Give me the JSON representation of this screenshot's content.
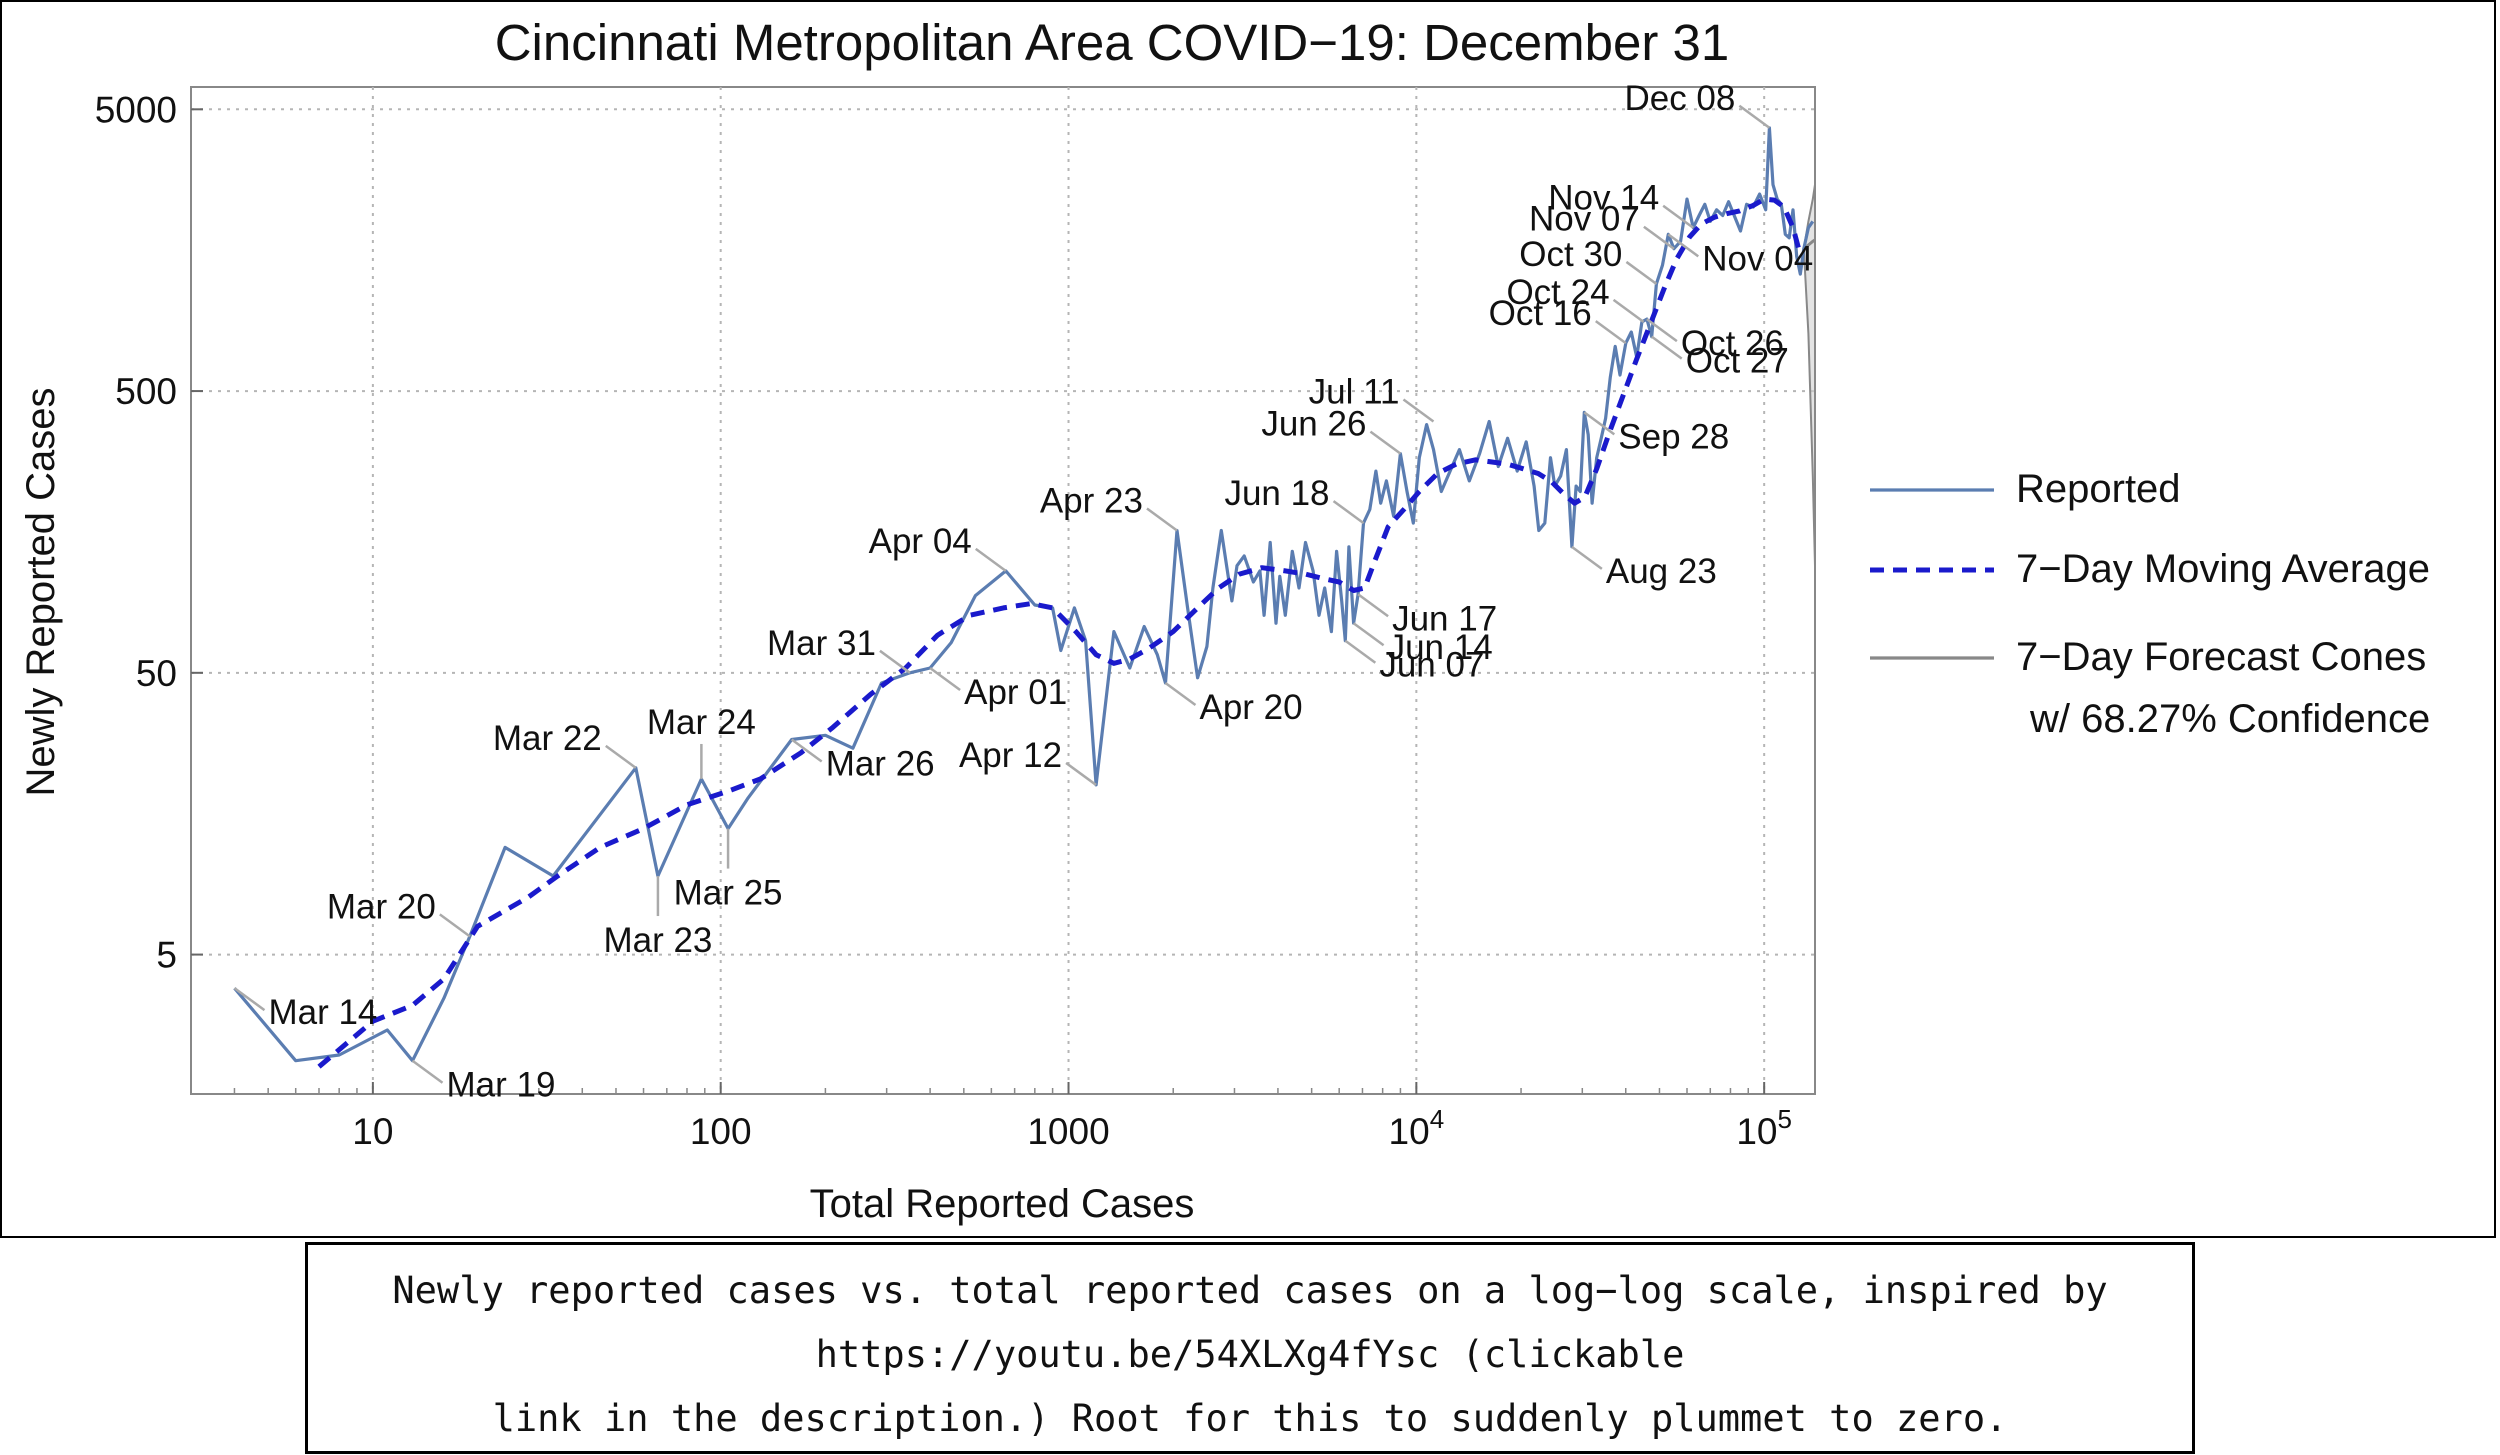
{
  "chart_data": {
    "type": "line",
    "title": "Cincinnati Metropolitan Area COVID−19: December 31",
    "xlabel": "Total Reported Cases",
    "ylabel": "Newly Reported Cases",
    "x_scale": "log",
    "y_scale": "log",
    "xlim": [
      3,
      140000
    ],
    "ylim": [
      1.6,
      6000
    ],
    "grid": true,
    "x_ticks": [
      {
        "value": 10,
        "label": "10"
      },
      {
        "value": 100,
        "label": "100"
      },
      {
        "value": 1000,
        "label": "1000"
      },
      {
        "value": 10000,
        "label": "10",
        "sup": "4"
      },
      {
        "value": 100000,
        "label": "10",
        "sup": "5"
      }
    ],
    "y_ticks": [
      {
        "value": 5,
        "label": "5"
      },
      {
        "value": 50,
        "label": "50"
      },
      {
        "value": 500,
        "label": "500"
      },
      {
        "value": 5000,
        "label": "5000"
      }
    ],
    "legend": {
      "placement": "right",
      "entries": [
        {
          "label": "Reported",
          "color": "#5b7db1",
          "style": "solid"
        },
        {
          "label": "7−Day Moving Average",
          "color": "#1a1acc",
          "style": "dashed"
        },
        {
          "label": "7−Day Forecast Cones",
          "label2": "w/ 68.27% Confidence",
          "color": "#888888",
          "style": "solid"
        }
      ]
    },
    "series": [
      {
        "name": "Reported",
        "color": "#5b7db1",
        "points": [
          [
            4,
            3.8
          ],
          [
            6,
            2.1
          ],
          [
            8,
            2.2
          ],
          [
            11,
            2.7
          ],
          [
            13,
            2.1
          ],
          [
            16,
            3.5
          ],
          [
            19,
            5.8
          ],
          [
            24,
            12
          ],
          [
            33,
            9.5
          ],
          [
            57,
            23
          ],
          [
            66,
            9.5
          ],
          [
            88,
            21
          ],
          [
            105,
            14
          ],
          [
            120,
            18
          ],
          [
            160,
            29
          ],
          [
            200,
            30
          ],
          [
            240,
            27
          ],
          [
            290,
            46
          ],
          [
            350,
            50
          ],
          [
            400,
            52
          ],
          [
            460,
            64
          ],
          [
            540,
            94
          ],
          [
            660,
            115
          ],
          [
            800,
            87
          ],
          [
            900,
            85
          ],
          [
            950,
            60
          ],
          [
            1040,
            85
          ],
          [
            1120,
            65
          ],
          [
            1200,
            20
          ],
          [
            1350,
            70
          ],
          [
            1500,
            52
          ],
          [
            1650,
            73
          ],
          [
            1800,
            58
          ],
          [
            1900,
            46
          ],
          [
            2050,
            160
          ],
          [
            2200,
            85
          ],
          [
            2350,
            48
          ],
          [
            2500,
            62
          ],
          [
            2600,
            100
          ],
          [
            2750,
            160
          ],
          [
            2950,
            90
          ],
          [
            3050,
            120
          ],
          [
            3200,
            130
          ],
          [
            3400,
            105
          ],
          [
            3550,
            115
          ],
          [
            3650,
            80
          ],
          [
            3800,
            145
          ],
          [
            3950,
            75
          ],
          [
            4050,
            110
          ],
          [
            4200,
            80
          ],
          [
            4400,
            135
          ],
          [
            4600,
            100
          ],
          [
            4800,
            145
          ],
          [
            5050,
            115
          ],
          [
            5250,
            80
          ],
          [
            5450,
            100
          ],
          [
            5700,
            70
          ],
          [
            5900,
            135
          ],
          [
            6100,
            90
          ],
          [
            6250,
            65
          ],
          [
            6400,
            140
          ],
          [
            6600,
            75
          ],
          [
            6800,
            95
          ],
          [
            7050,
            170
          ],
          [
            7350,
            190
          ],
          [
            7650,
            260
          ],
          [
            7900,
            200
          ],
          [
            8200,
            240
          ],
          [
            8600,
            180
          ],
          [
            9000,
            300
          ],
          [
            9400,
            220
          ],
          [
            9800,
            170
          ],
          [
            10200,
            290
          ],
          [
            10700,
            380
          ],
          [
            11200,
            310
          ],
          [
            11800,
            220
          ],
          [
            12500,
            260
          ],
          [
            13300,
            310
          ],
          [
            14200,
            240
          ],
          [
            15200,
            300
          ],
          [
            16200,
            390
          ],
          [
            17200,
            270
          ],
          [
            18300,
            340
          ],
          [
            19500,
            260
          ],
          [
            20700,
            330
          ],
          [
            21800,
            230
          ],
          [
            22500,
            160
          ],
          [
            23400,
            170
          ],
          [
            24300,
            290
          ],
          [
            25000,
            230
          ],
          [
            26000,
            250
          ],
          [
            27000,
            310
          ],
          [
            28000,
            140
          ],
          [
            28800,
            230
          ],
          [
            29600,
            220
          ],
          [
            30400,
            420
          ],
          [
            31200,
            350
          ],
          [
            32000,
            200
          ],
          [
            33000,
            290
          ],
          [
            34000,
            340
          ],
          [
            35000,
            400
          ],
          [
            36100,
            560
          ],
          [
            37300,
            720
          ],
          [
            38500,
            570
          ],
          [
            40000,
            740
          ],
          [
            41500,
            810
          ],
          [
            43000,
            660
          ],
          [
            44500,
            880
          ],
          [
            46000,
            900
          ],
          [
            47500,
            780
          ],
          [
            49000,
            1200
          ],
          [
            51000,
            1400
          ],
          [
            53000,
            1800
          ],
          [
            55000,
            1600
          ],
          [
            57500,
            1700
          ],
          [
            60000,
            2400
          ],
          [
            62500,
            1900
          ],
          [
            65000,
            2100
          ],
          [
            67500,
            2300
          ],
          [
            70000,
            2000
          ],
          [
            73000,
            2200
          ],
          [
            76000,
            2100
          ],
          [
            79000,
            2350
          ],
          [
            82000,
            2100
          ],
          [
            85500,
            1850
          ],
          [
            89000,
            2300
          ],
          [
            93000,
            2250
          ],
          [
            97000,
            2500
          ],
          [
            101000,
            2200
          ],
          [
            103500,
            4300
          ],
          [
            106000,
            2700
          ],
          [
            109000,
            2400
          ],
          [
            112000,
            2300
          ],
          [
            115000,
            1800
          ],
          [
            118000,
            1750
          ],
          [
            121000,
            2200
          ],
          [
            124000,
            1500
          ],
          [
            127000,
            1300
          ],
          [
            130000,
            1600
          ],
          [
            134000,
            1900
          ],
          [
            138000,
            2000
          ]
        ]
      },
      {
        "name": "7−Day Moving Average",
        "color": "#1a1acc",
        "points": [
          [
            7,
            2.0
          ],
          [
            10,
            2.9
          ],
          [
            13,
            3.3
          ],
          [
            16,
            4.1
          ],
          [
            20,
            6.3
          ],
          [
            28,
            8.0
          ],
          [
            34,
            9.5
          ],
          [
            45,
            12
          ],
          [
            60,
            14
          ],
          [
            80,
            17
          ],
          [
            105,
            19
          ],
          [
            130,
            21
          ],
          [
            170,
            26
          ],
          [
            210,
            32
          ],
          [
            270,
            42
          ],
          [
            340,
            52
          ],
          [
            420,
            68
          ],
          [
            520,
            80
          ],
          [
            650,
            85
          ],
          [
            780,
            88
          ],
          [
            900,
            85
          ],
          [
            1050,
            70
          ],
          [
            1200,
            58
          ],
          [
            1350,
            54
          ],
          [
            1500,
            56
          ],
          [
            1700,
            61
          ],
          [
            2000,
            70
          ],
          [
            2350,
            85
          ],
          [
            2700,
            100
          ],
          [
            3100,
            112
          ],
          [
            3600,
            118
          ],
          [
            4200,
            115
          ],
          [
            4800,
            112
          ],
          [
            5400,
            108
          ],
          [
            6000,
            105
          ],
          [
            6600,
            98
          ],
          [
            7100,
            100
          ],
          [
            7600,
            125
          ],
          [
            8300,
            165
          ],
          [
            9200,
            190
          ],
          [
            10200,
            220
          ],
          [
            11500,
            255
          ],
          [
            13000,
            275
          ],
          [
            14800,
            285
          ],
          [
            16500,
            280
          ],
          [
            18300,
            275
          ],
          [
            20300,
            265
          ],
          [
            22400,
            255
          ],
          [
            24500,
            238
          ],
          [
            26600,
            215
          ],
          [
            28500,
            200
          ],
          [
            30500,
            210
          ],
          [
            33000,
            265
          ],
          [
            36000,
            360
          ],
          [
            39500,
            490
          ],
          [
            43000,
            650
          ],
          [
            47000,
            860
          ],
          [
            51500,
            1150
          ],
          [
            56000,
            1470
          ],
          [
            61000,
            1760
          ],
          [
            66000,
            1960
          ],
          [
            72000,
            2070
          ],
          [
            78000,
            2130
          ],
          [
            85000,
            2180
          ],
          [
            93000,
            2280
          ],
          [
            100000,
            2400
          ],
          [
            107000,
            2380
          ],
          [
            114000,
            2250
          ],
          [
            121000,
            1900
          ],
          [
            126000,
            1580
          ]
        ]
      },
      {
        "name": "7−Day Forecast Cones",
        "color": "#888888",
        "points": [
          [
            130000,
            1600
          ],
          [
            134000,
            1650
          ],
          [
            138000,
            1700
          ],
          [
            140000,
            1720
          ]
        ],
        "upper": [
          [
            130000,
            1600
          ],
          [
            134000,
            2000
          ],
          [
            138000,
            2400
          ],
          [
            140000,
            2700
          ]
        ],
        "lower": [
          [
            130000,
            1600
          ],
          [
            134000,
            800
          ],
          [
            138000,
            250
          ],
          [
            140000,
            120
          ]
        ]
      }
    ],
    "annotations": [
      {
        "label": "Mar 14",
        "x": 4,
        "y": 3.8,
        "side": "right"
      },
      {
        "label": "Mar 19",
        "x": 13,
        "y": 2.1,
        "side": "right"
      },
      {
        "label": "Mar 20",
        "x": 19,
        "y": 5.8,
        "side": "left"
      },
      {
        "label": "Mar 22",
        "x": 57,
        "y": 23,
        "side": "left"
      },
      {
        "label": "Mar 23",
        "x": 66,
        "y": 9.5,
        "side": "below"
      },
      {
        "label": "Mar 24",
        "x": 88,
        "y": 21,
        "side": "above"
      },
      {
        "label": "Mar 25",
        "x": 105,
        "y": 14,
        "side": "below"
      },
      {
        "label": "Mar 26",
        "x": 160,
        "y": 29,
        "side": "right"
      },
      {
        "label": "Mar 31",
        "x": 350,
        "y": 50,
        "side": "left"
      },
      {
        "label": "Apr 01",
        "x": 400,
        "y": 52,
        "side": "right"
      },
      {
        "label": "Apr 04",
        "x": 660,
        "y": 115,
        "side": "left"
      },
      {
        "label": "Apr 12",
        "x": 1200,
        "y": 20,
        "side": "left"
      },
      {
        "label": "Apr 20",
        "x": 1900,
        "y": 46,
        "side": "right"
      },
      {
        "label": "Apr 23",
        "x": 2050,
        "y": 160,
        "side": "left"
      },
      {
        "label": "Jun 07",
        "x": 6250,
        "y": 65,
        "side": "right"
      },
      {
        "label": "Jun 14",
        "x": 6600,
        "y": 75,
        "side": "right"
      },
      {
        "label": "Jun 17",
        "x": 6800,
        "y": 95,
        "side": "right"
      },
      {
        "label": "Jun 18",
        "x": 7050,
        "y": 170,
        "side": "left"
      },
      {
        "label": "Jun 26",
        "x": 9000,
        "y": 300,
        "side": "left"
      },
      {
        "label": "Jul 11",
        "x": 11200,
        "y": 390,
        "side": "left"
      },
      {
        "label": "Aug 23",
        "x": 28000,
        "y": 140,
        "side": "right"
      },
      {
        "label": "Sep 28",
        "x": 30400,
        "y": 420,
        "side": "right"
      },
      {
        "label": "Oct 16",
        "x": 40000,
        "y": 740,
        "side": "left"
      },
      {
        "label": "Oct 24",
        "x": 45000,
        "y": 880,
        "side": "left"
      },
      {
        "label": "Oct 26",
        "x": 46000,
        "y": 900,
        "side": "right"
      },
      {
        "label": "Oct 27",
        "x": 47500,
        "y": 780,
        "side": "right"
      },
      {
        "label": "Oct 30",
        "x": 49000,
        "y": 1200,
        "side": "left"
      },
      {
        "label": "Nov 04",
        "x": 53000,
        "y": 1800,
        "side": "right"
      },
      {
        "label": "Nov 07",
        "x": 55000,
        "y": 1600,
        "side": "left"
      },
      {
        "label": "Nov 14",
        "x": 62500,
        "y": 1900,
        "side": "left"
      },
      {
        "label": "Dec 08",
        "x": 103500,
        "y": 4300,
        "side": "left"
      }
    ]
  },
  "caption": {
    "line1": "Newly reported cases vs. total reported cases on a log−log scale, inspired by",
    "line2": "https://youtu.be/54XLXg4fYsc (clickable",
    "line3": "link in the description.) Root for this to suddenly plummet to zero."
  }
}
